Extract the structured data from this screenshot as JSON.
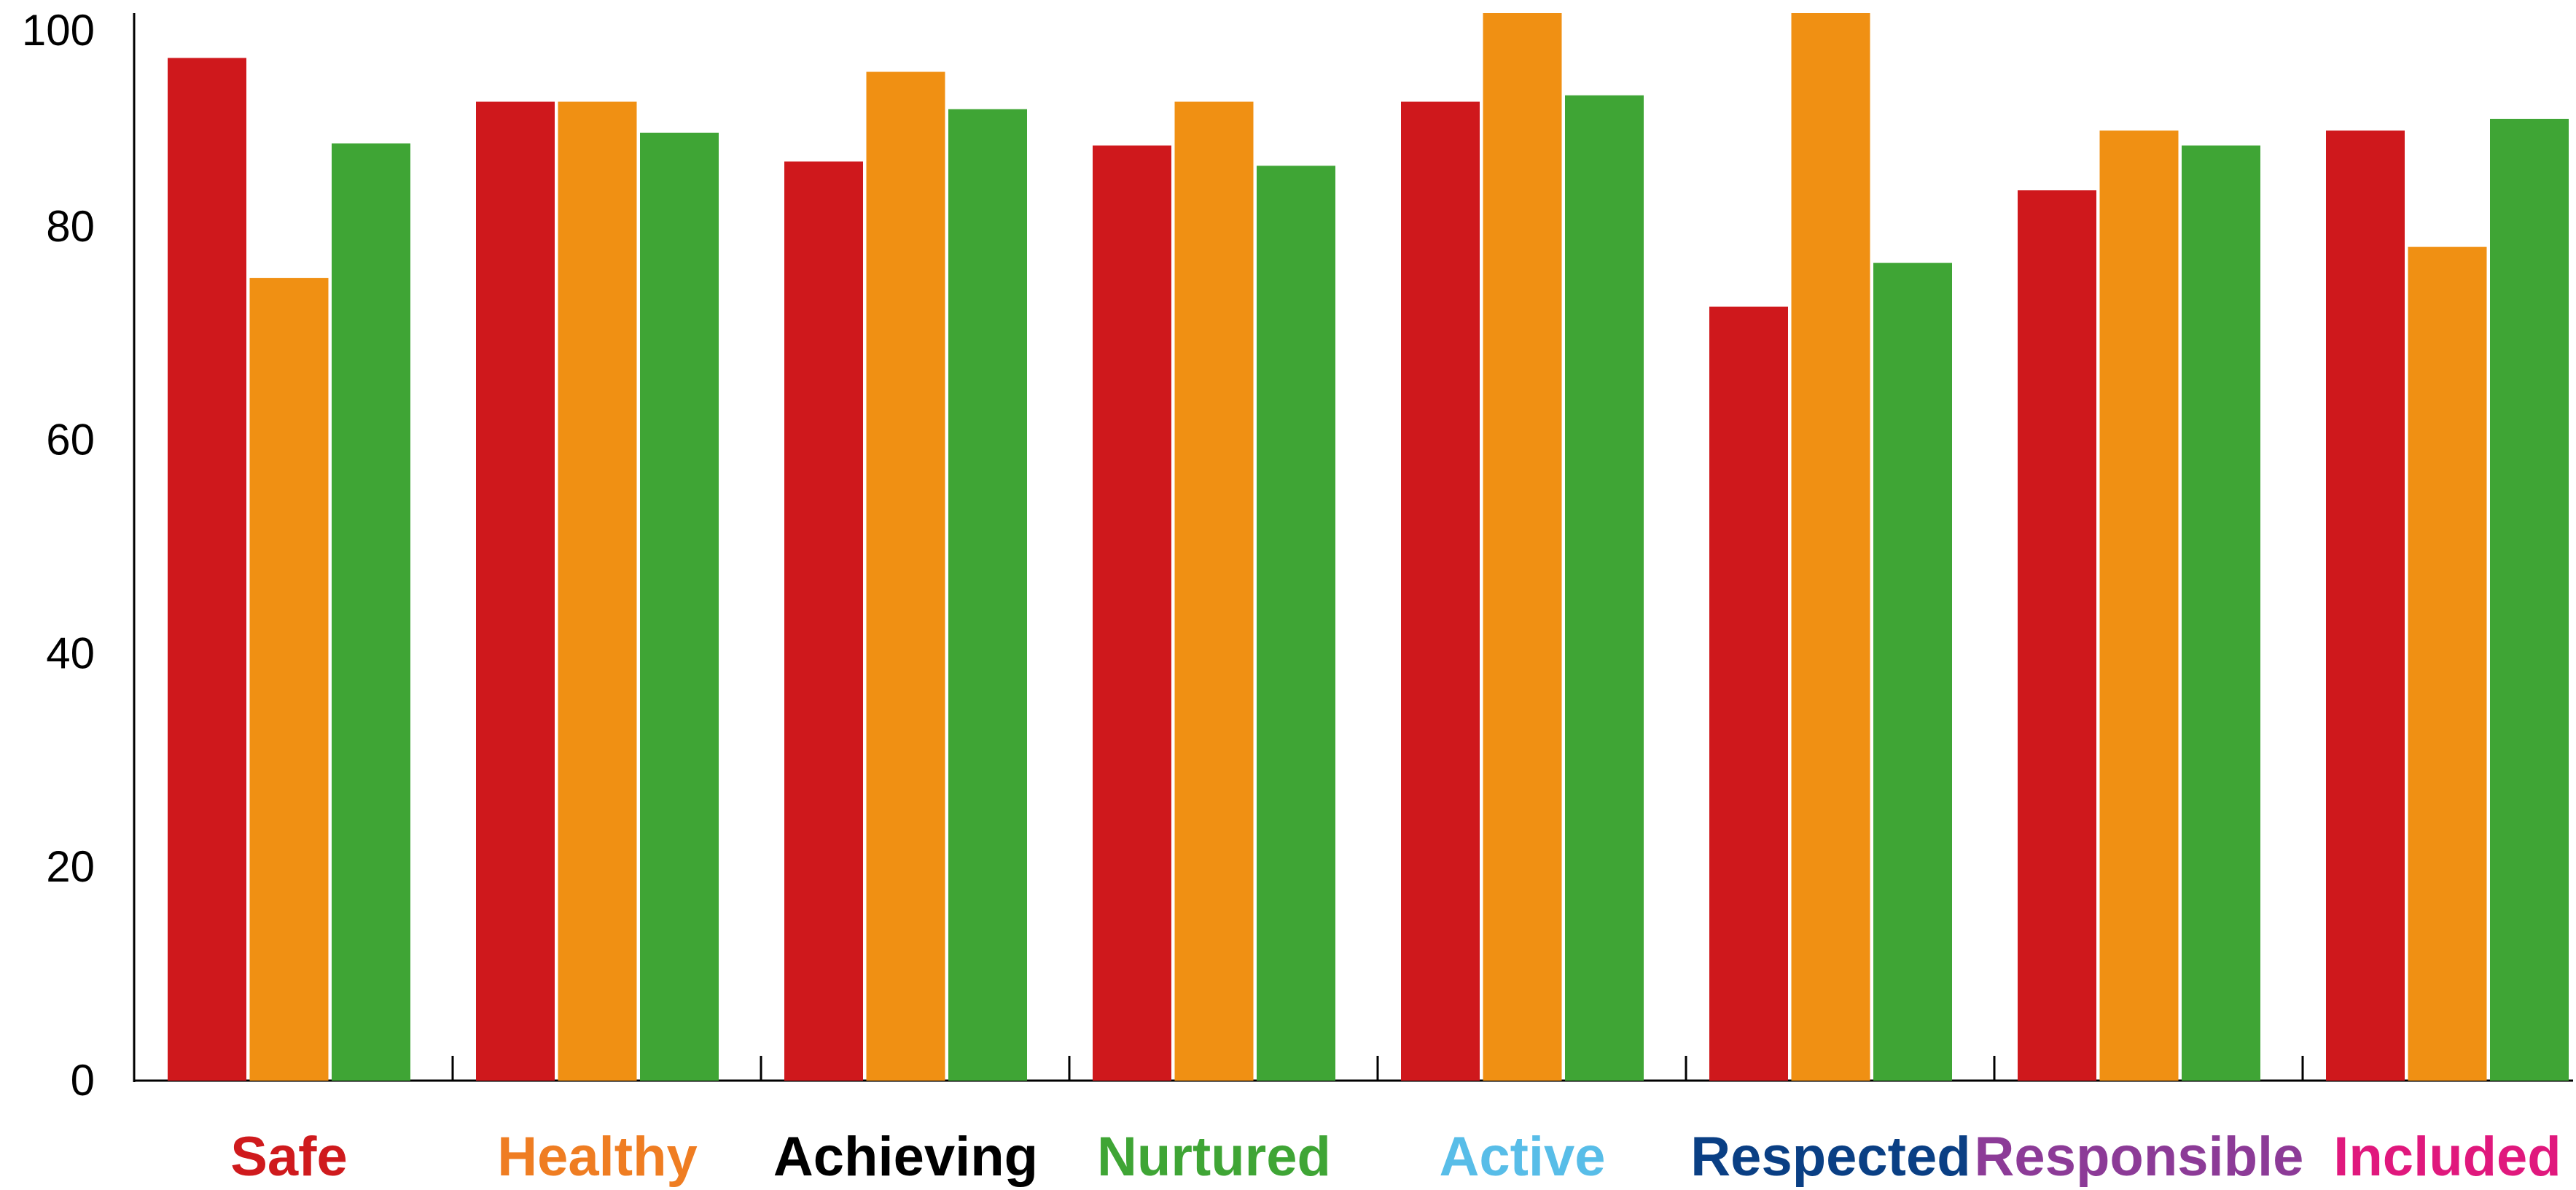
{
  "chart_data": {
    "type": "bar",
    "title": "",
    "xlabel": "",
    "ylabel": "",
    "ylim": [
      0,
      100
    ],
    "yticks": [
      0,
      20,
      40,
      60,
      80,
      100
    ],
    "grid": false,
    "legend": "none",
    "categories": [
      "Safe",
      "Healthy",
      "Achieving",
      "Nurtured",
      "Active",
      "Respected",
      "Responsible",
      "Included"
    ],
    "category_colors": [
      "#cf1a1d",
      "#ef7d22",
      "#000000",
      "#3fa535",
      "#58bde8",
      "#0a3f84",
      "#8c3b97",
      "#e0187d"
    ],
    "series": [
      {
        "color": "#cf181c",
        "values": [
          95.8,
          91.7,
          86.1,
          87.6,
          91.7,
          72.5,
          83.4,
          89.0
        ]
      },
      {
        "color": "#f09013",
        "values": [
          75.2,
          91.7,
          94.5,
          91.7,
          100.0,
          100.0,
          89.0,
          78.1
        ]
      },
      {
        "color": "#3fa535",
        "values": [
          87.8,
          88.8,
          91.0,
          85.7,
          92.3,
          76.6,
          87.6,
          90.1
        ]
      }
    ]
  }
}
